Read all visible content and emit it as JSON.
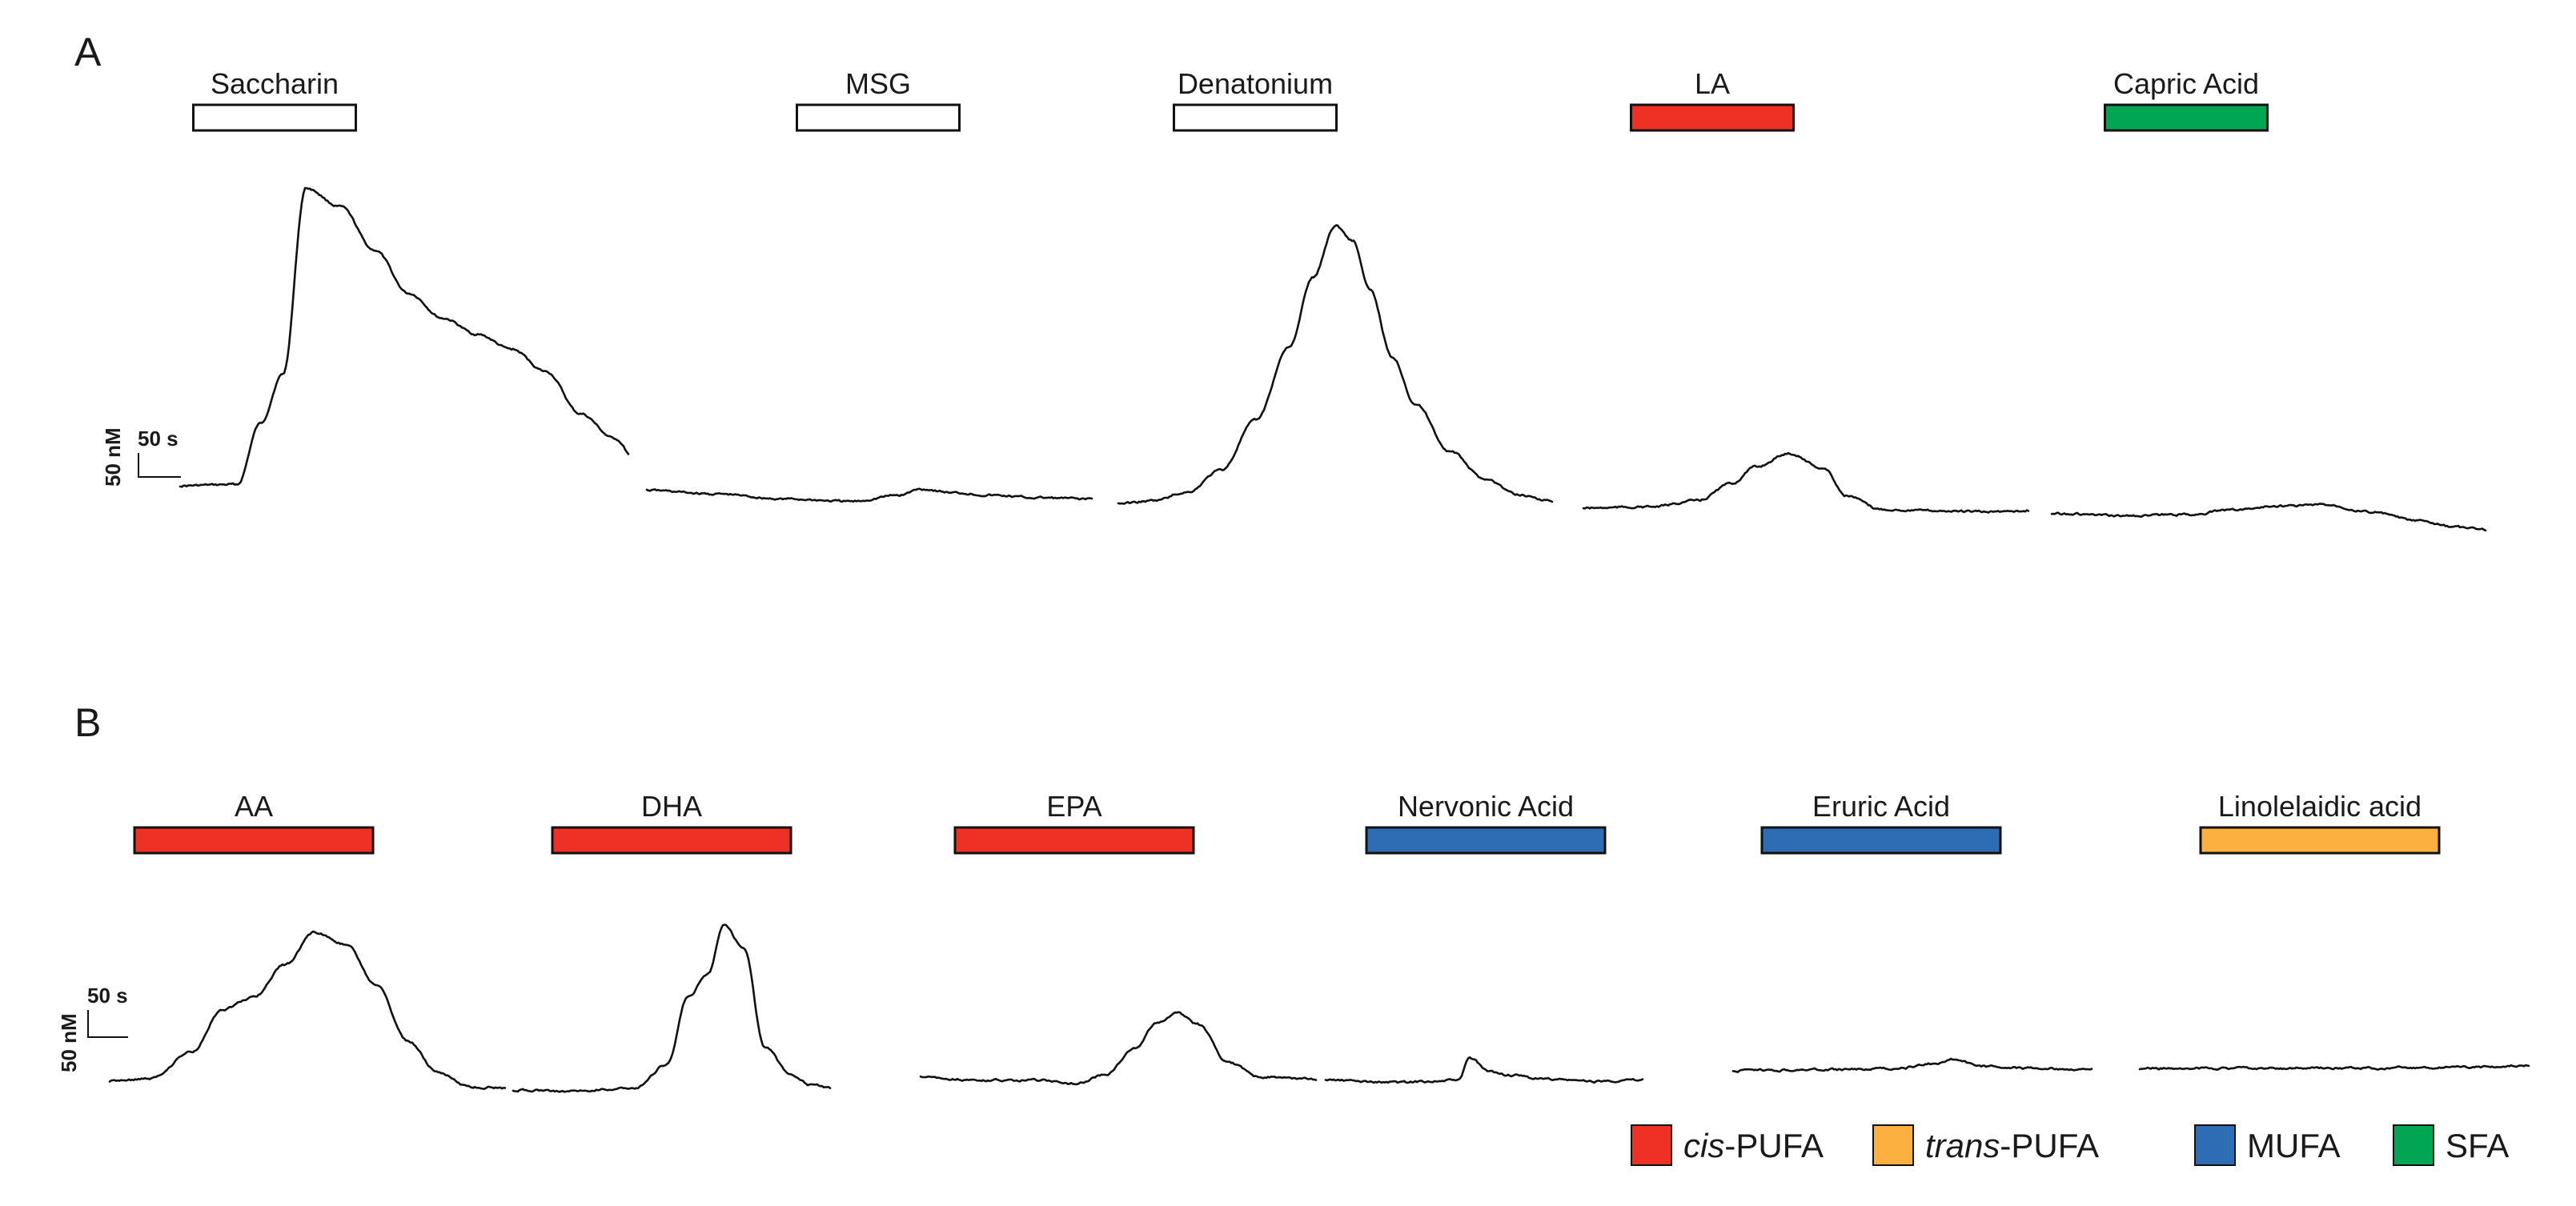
{
  "figure": {
    "panels": [
      {
        "id": "A",
        "letter": "A",
        "scale_bar": {
          "vertical_label": "50 nM",
          "horizontal_label": "50 s"
        },
        "stimuli": [
          {
            "label": "Saccharin",
            "fill": "#ffffff"
          },
          {
            "label": "MSG",
            "fill": "#ffffff"
          },
          {
            "label": "Denatonium",
            "fill": "#ffffff"
          },
          {
            "label": "LA",
            "fill": "#ee3124",
            "category": "cis-PUFA"
          },
          {
            "label": "Capric Acid",
            "fill": "#00a651",
            "category": "SFA"
          }
        ]
      },
      {
        "id": "B",
        "letter": "B",
        "scale_bar": {
          "vertical_label": "50 nM",
          "horizontal_label": "50 s"
        },
        "stimuli": [
          {
            "label": "AA",
            "fill": "#ee3124",
            "category": "cis-PUFA"
          },
          {
            "label": "DHA",
            "fill": "#ee3124",
            "category": "cis-PUFA"
          },
          {
            "label": "EPA",
            "fill": "#ee3124",
            "category": "cis-PUFA"
          },
          {
            "label": "Nervonic Acid",
            "fill": "#2e6db4",
            "category": "MUFA"
          },
          {
            "label": "Eruric Acid",
            "fill": "#2e6db4",
            "category": "MUFA"
          },
          {
            "label": "Linolelaidic acid",
            "fill": "#fbb040",
            "category": "trans-PUFA"
          }
        ]
      }
    ],
    "legend": [
      {
        "prefix": "cis",
        "suffix": "-PUFA",
        "color": "#ee3124"
      },
      {
        "prefix": "trans",
        "suffix": "-PUFA",
        "color": "#fbb040"
      },
      {
        "prefix": "",
        "suffix": "MUFA",
        "color": "#2e6db4"
      },
      {
        "prefix": "",
        "suffix": "SFA",
        "color": "#00a651"
      }
    ]
  },
  "chart_data": [
    {
      "type": "line",
      "panel": "A",
      "units": {
        "y": "nM",
        "x": "s"
      },
      "series": [
        {
          "stimulus": "Saccharin",
          "x": [
            0,
            50,
            70,
            90,
            110,
            140,
            170,
            200,
            230,
            260,
            290,
            320,
            350,
            380,
            400
          ],
          "y": [
            0,
            1,
            50,
            90,
            240,
            225,
            190,
            155,
            135,
            122,
            110,
            92,
            58,
            38,
            18
          ]
        },
        {
          "stimulus": "MSG",
          "x": [
            0,
            60,
            120,
            180,
            220,
            240,
            270,
            300,
            340,
            390
          ],
          "y": [
            6,
            3,
            -1,
            -3,
            2,
            7,
            4,
            2,
            0,
            -1
          ]
        },
        {
          "stimulus": "Denatonium",
          "x": [
            0,
            30,
            60,
            90,
            120,
            150,
            170,
            190,
            205,
            220,
            240,
            260,
            290,
            320,
            350,
            380
          ],
          "y": [
            -2,
            0,
            7,
            25,
            65,
            125,
            180,
            222,
            210,
            170,
            115,
            78,
            40,
            18,
            5,
            0
          ]
        },
        {
          "stimulus": "LA",
          "x": [
            0,
            60,
            100,
            130,
            150,
            180,
            210,
            230,
            260,
            300,
            350,
            390
          ],
          "y": [
            2,
            3,
            8,
            22,
            35,
            46,
            34,
            12,
            1,
            0,
            -1,
            0
          ]
        },
        {
          "stimulus": "Capric Acid",
          "x": [
            0,
            60,
            120,
            160,
            200,
            240,
            280,
            320,
            350,
            380
          ],
          "y": [
            1,
            -1,
            0,
            4,
            7,
            8,
            2,
            -5,
            -10,
            -12
          ]
        }
      ]
    },
    {
      "type": "line",
      "panel": "B",
      "units": {
        "y": "nM",
        "x": "s"
      },
      "series": [
        {
          "stimulus": "AA",
          "x": [
            0,
            40,
            80,
            110,
            140,
            170,
            200,
            230,
            260,
            290,
            320,
            350,
            390
          ],
          "y": [
            0,
            2,
            25,
            62,
            72,
            100,
            128,
            118,
            82,
            35,
            8,
            -5,
            -6
          ]
        },
        {
          "stimulus": "DHA",
          "x": [
            0,
            60,
            120,
            150,
            170,
            190,
            205,
            225,
            245,
            270,
            290,
            310
          ],
          "y": [
            -2,
            -3,
            0,
            20,
            78,
            98,
            140,
            120,
            35,
            12,
            2,
            0
          ]
        },
        {
          "stimulus": "EPA",
          "x": [
            0,
            60,
            120,
            150,
            180,
            210,
            230,
            250,
            270,
            300,
            330,
            360,
            390
          ],
          "y": [
            3,
            0,
            0,
            -3,
            5,
            28,
            50,
            58,
            48,
            15,
            3,
            2,
            1
          ]
        },
        {
          "stimulus": "Nervonic Acid",
          "x": [
            0,
            60,
            110,
            130,
            140,
            160,
            180,
            210,
            260,
            310
          ],
          "y": [
            1,
            -1,
            0,
            1,
            20,
            8,
            5,
            2,
            0,
            1
          ]
        },
        {
          "stimulus": "Eruric Acid",
          "x": [
            0,
            100,
            160,
            195,
            215,
            240,
            300,
            350
          ],
          "y": [
            0,
            1,
            2,
            6,
            10,
            4,
            2,
            1
          ]
        },
        {
          "stimulus": "Linolelaidic acid",
          "x": [
            0,
            100,
            200,
            300,
            380
          ],
          "y": [
            0,
            0,
            0,
            1,
            2
          ]
        }
      ]
    }
  ]
}
